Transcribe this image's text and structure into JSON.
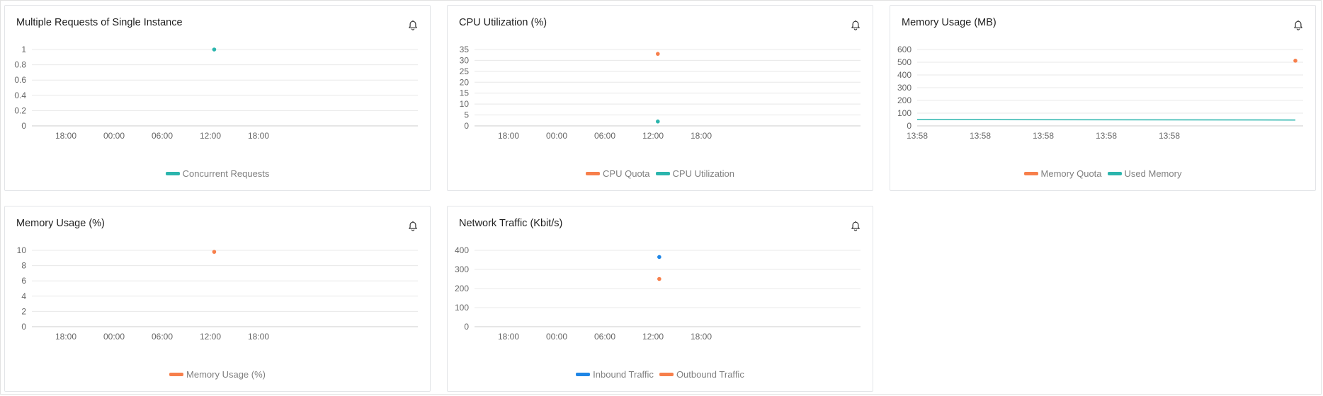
{
  "colors": {
    "teal": "#2bb5ad",
    "orange": "#f77f4b",
    "blue": "#1f86e6",
    "grid": "#e8e8e8",
    "axis": "#cccccc"
  },
  "icons": {
    "alert": "bell-icon"
  },
  "charts": [
    {
      "title": "Multiple Requests of Single Instance",
      "legend": [
        {
          "label": "Concurrent Requests",
          "color": "#2bb5ad"
        }
      ]
    },
    {
      "title": "CPU Utilization (%)",
      "legend": [
        {
          "label": "CPU Quota",
          "color": "#f77f4b"
        },
        {
          "label": "CPU Utilization",
          "color": "#2bb5ad"
        }
      ]
    },
    {
      "title": "Memory Usage (MB)",
      "legend": [
        {
          "label": "Memory Quota",
          "color": "#f77f4b"
        },
        {
          "label": "Used Memory",
          "color": "#2bb5ad"
        }
      ]
    },
    {
      "title": "Memory Usage (%)",
      "legend": [
        {
          "label": "Memory Usage (%)",
          "color": "#f77f4b"
        }
      ]
    },
    {
      "title": "Network Traffic (Kbit/s)",
      "legend": [
        {
          "label": "Inbound Traffic",
          "color": "#1f86e6"
        },
        {
          "label": "Outbound Traffic",
          "color": "#f77f4b"
        }
      ]
    }
  ],
  "chart_data": [
    {
      "type": "scatter",
      "title": "Multiple Requests of Single Instance",
      "x_ticks": [
        "18:00",
        "00:00",
        "06:00",
        "12:00",
        "18:00"
      ],
      "y_ticks": [
        "0",
        "0.2",
        "0.4",
        "0.6",
        "0.8",
        "1"
      ],
      "ylim": [
        0,
        1
      ],
      "grid": true,
      "legend_position": "bottom",
      "series": [
        {
          "name": "Concurrent Requests",
          "color": "#2bb5ad",
          "points": [
            {
              "x": 3.08,
              "y": 1
            }
          ]
        }
      ]
    },
    {
      "type": "scatter",
      "title": "CPU Utilization (%)",
      "x_ticks": [
        "18:00",
        "00:00",
        "06:00",
        "12:00",
        "18:00"
      ],
      "y_ticks": [
        "0",
        "5",
        "10",
        "15",
        "20",
        "25",
        "30",
        "35"
      ],
      "ylim": [
        0,
        35
      ],
      "grid": true,
      "legend_position": "bottom",
      "series": [
        {
          "name": "CPU Quota",
          "color": "#f77f4b",
          "points": [
            {
              "x": 3.1,
              "y": 33
            }
          ]
        },
        {
          "name": "CPU Utilization",
          "color": "#2bb5ad",
          "points": [
            {
              "x": 3.1,
              "y": 2
            }
          ]
        }
      ]
    },
    {
      "type": "line",
      "title": "Memory Usage (MB)",
      "x_ticks": [
        "13:58",
        "13:58",
        "13:58",
        "13:58",
        "13:58"
      ],
      "y_ticks": [
        "0",
        "100",
        "200",
        "300",
        "400",
        "500",
        "600"
      ],
      "ylim": [
        0,
        600
      ],
      "grid": true,
      "legend_position": "bottom",
      "series": [
        {
          "name": "Memory Quota",
          "color": "#f77f4b",
          "points": [
            {
              "x": 6.0,
              "y": 512
            }
          ]
        },
        {
          "name": "Used Memory",
          "color": "#2bb5ad",
          "line": true,
          "points": [
            {
              "x": 0,
              "y": 49
            },
            {
              "x": 6.0,
              "y": 46
            }
          ]
        }
      ]
    },
    {
      "type": "scatter",
      "title": "Memory Usage (%)",
      "x_ticks": [
        "18:00",
        "00:00",
        "06:00",
        "12:00",
        "18:00"
      ],
      "y_ticks": [
        "0",
        "2",
        "4",
        "6",
        "8",
        "10"
      ],
      "ylim": [
        0,
        10
      ],
      "grid": true,
      "legend_position": "bottom",
      "series": [
        {
          "name": "Memory Usage (%)",
          "color": "#f77f4b",
          "points": [
            {
              "x": 3.08,
              "y": 9.8
            }
          ]
        }
      ]
    },
    {
      "type": "scatter",
      "title": "Network Traffic (Kbit/s)",
      "x_ticks": [
        "18:00",
        "00:00",
        "06:00",
        "12:00",
        "18:00"
      ],
      "y_ticks": [
        "0",
        "100",
        "200",
        "300",
        "400"
      ],
      "ylim": [
        0,
        400
      ],
      "grid": true,
      "legend_position": "bottom",
      "series": [
        {
          "name": "Inbound Traffic",
          "color": "#1f86e6",
          "points": [
            {
              "x": 3.13,
              "y": 365
            }
          ]
        },
        {
          "name": "Outbound Traffic",
          "color": "#f77f4b",
          "points": [
            {
              "x": 3.13,
              "y": 250
            }
          ]
        }
      ]
    }
  ]
}
